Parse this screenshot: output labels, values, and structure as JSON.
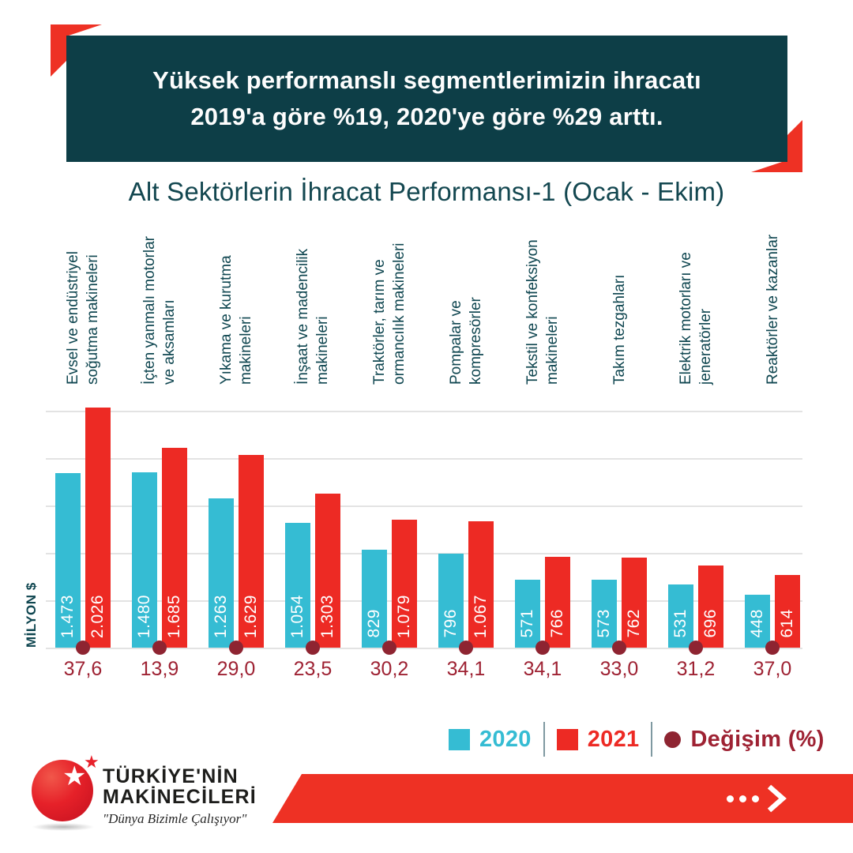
{
  "header": {
    "line1": "Yüksek performanslı segmentlerimizin ihracatı",
    "line2": "2019'a göre %19, 2020'ye göre %29 arttı."
  },
  "chart_title": "Alt Sektörlerin İhracat Performansı-1 (Ocak - Ekim)",
  "y_axis_label": "MİLYON $",
  "chart_data": {
    "type": "bar",
    "title": "Alt Sektörlerin İhracat Performansı-1 (Ocak - Ekim)",
    "ylabel": "MİLYON $",
    "ylim": [
      0,
      2100
    ],
    "gridline_step": 400,
    "grid": true,
    "legend_position": "bottom-right",
    "categories": [
      "Evsel ve endüstriyel\nsoğutma makineleri",
      "İçten yanmalı motorlar\nve aksamları",
      "Yıkama ve kurutma\nmakineleri",
      "İnşaat ve madencilik\nmakineleri",
      "Traktörler, tarım ve\normancılık makineleri",
      "Pompalar ve\nkompresörler",
      "Tekstil ve konfeksiyon\nmakineleri",
      "Takım tezgahları",
      "Elektrik motorları ve\njeneratörler",
      "Reaktörler ve kazanlar"
    ],
    "series": [
      {
        "name": "2020",
        "color": "#35bcd3",
        "values": [
          1473,
          1480,
          1263,
          1054,
          829,
          796,
          571,
          573,
          531,
          448
        ],
        "labels": [
          "1.473",
          "1.480",
          "1.263",
          "1.054",
          "829",
          "796",
          "571",
          "573",
          "531",
          "448"
        ]
      },
      {
        "name": "2021",
        "color": "#ed2a24",
        "values": [
          2026,
          1685,
          1629,
          1303,
          1079,
          1067,
          766,
          762,
          696,
          614
        ],
        "labels": [
          "2.026",
          "1.685",
          "1.629",
          "1.303",
          "1.079",
          "1.067",
          "766",
          "762",
          "696",
          "614"
        ]
      }
    ],
    "change": {
      "name": "Değişim (%)",
      "color": "#9e2233",
      "labels": [
        "37,6",
        "13,9",
        "29,0",
        "23,5",
        "30,2",
        "34,1",
        "34,1",
        "33,0",
        "31,2",
        "37,0"
      ]
    }
  },
  "legend": {
    "items": [
      {
        "label": "2020",
        "color": "#35bcd3",
        "marker": "square"
      },
      {
        "label": "2021",
        "color": "#ed2a24",
        "marker": "square"
      },
      {
        "label": "Değişim (%)",
        "color": "#9e2233",
        "marker": "circle"
      }
    ]
  },
  "footer": {
    "brand_line1": "TÜRKİYE'NİN",
    "brand_line2": "MAKİNECİLERİ",
    "tagline": "\"Dünya Bizimle Çalışıyor\"",
    "star_icon": "★"
  },
  "colors": {
    "header_bg": "#0d3e47",
    "accent_red": "#ee3124",
    "title_text": "#134750",
    "category_text": "#0f4650",
    "bar_2020": "#35bcd3",
    "bar_2021": "#ed2a24",
    "change_dot": "#8e2431",
    "change_text": "#9e2233",
    "gridline": "#e3e3e3"
  }
}
